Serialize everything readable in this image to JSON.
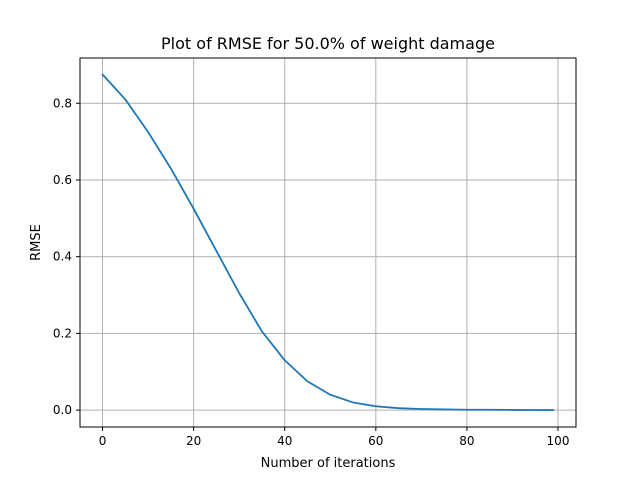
{
  "chart_data": {
    "type": "line",
    "title": "Plot of RMSE for 50.0% of weight damage",
    "xlabel": "Number of iterations",
    "ylabel": "RMSE",
    "xlim": [
      -4.95,
      103.95
    ],
    "ylim": [
      -0.044,
      0.918
    ],
    "xticks": [
      0,
      20,
      40,
      60,
      80,
      100
    ],
    "yticks": [
      0.0,
      0.2,
      0.4,
      0.6,
      0.8
    ],
    "xtick_labels": [
      "0",
      "20",
      "40",
      "60",
      "80",
      "100"
    ],
    "ytick_labels": [
      "0.0",
      "0.2",
      "0.4",
      "0.6",
      "0.8"
    ],
    "grid": true,
    "colors": {
      "series": "#1f77b4",
      "grid": "#b0b0b0"
    },
    "series": [
      {
        "x": [
          0,
          5,
          10,
          15,
          20,
          25,
          30,
          35,
          40,
          45,
          50,
          55,
          60,
          65,
          70,
          75,
          80,
          85,
          90,
          95,
          99
        ],
        "values": [
          0.875,
          0.81,
          0.725,
          0.63,
          0.525,
          0.415,
          0.305,
          0.205,
          0.13,
          0.075,
          0.04,
          0.02,
          0.01,
          0.005,
          0.003,
          0.002,
          0.001,
          0.001,
          0.0005,
          0.0003,
          0.0002
        ]
      }
    ]
  }
}
